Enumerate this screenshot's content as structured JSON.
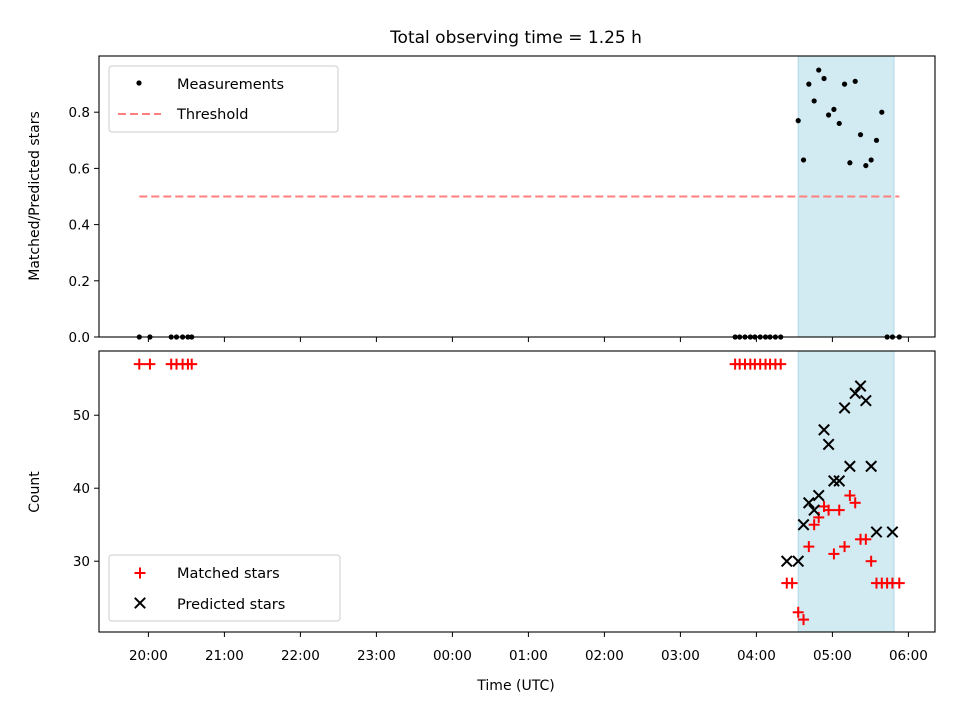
{
  "chart_data": [
    {
      "type": "scatter",
      "title": "Total observing time = 1.25 h",
      "xlabel": "",
      "ylabel": "Matched/Predicted stars",
      "xlim": [
        -0.65,
        10.35
      ],
      "ylim": [
        0,
        1.0
      ],
      "yticks": [
        0.0,
        0.2,
        0.4,
        0.6,
        0.8
      ],
      "ytick_labels": [
        "0.0",
        "0.2",
        "0.4",
        "0.6",
        "0.8"
      ],
      "grid": false,
      "legend_position": "upper left",
      "shaded_region": {
        "from": 8.55,
        "to": 9.81,
        "color": "#add8e6"
      },
      "series": [
        {
          "name": "Measurements",
          "marker": "dot",
          "color": "#000000",
          "x": [
            -0.12,
            0.02,
            0.3,
            0.37,
            0.45,
            0.52,
            0.57,
            7.72,
            7.78,
            7.85,
            7.92,
            7.98,
            8.05,
            8.12,
            8.18,
            8.25,
            8.32,
            8.55,
            8.62,
            8.69,
            8.76,
            8.82,
            8.89,
            8.95,
            9.02,
            9.09,
            9.16,
            9.23,
            9.3,
            9.37,
            9.44,
            9.51,
            9.58,
            9.65,
            9.72,
            9.79,
            9.88
          ],
          "y": [
            0,
            0,
            0,
            0,
            0,
            0,
            0,
            0,
            0,
            0,
            0,
            0,
            0,
            0,
            0,
            0,
            0,
            0.77,
            0.63,
            0.9,
            0.84,
            0.95,
            0.92,
            0.79,
            0.81,
            0.76,
            0.9,
            0.62,
            0.91,
            0.72,
            0.61,
            0.63,
            0.7,
            0.8,
            0.0,
            0.0,
            0.0
          ]
        },
        {
          "name": "Threshold",
          "style": "dashed",
          "color": "#ff7f7f",
          "x": [
            -0.12,
            9.88
          ],
          "y": [
            0.5,
            0.5
          ]
        }
      ]
    },
    {
      "type": "scatter",
      "xlabel": "Time (UTC)",
      "ylabel": "Count",
      "xlim": [
        -0.65,
        10.35
      ],
      "ylim": [
        20.3,
        58.8
      ],
      "yticks": [
        30,
        40,
        50
      ],
      "ytick_labels": [
        "30",
        "40",
        "50"
      ],
      "xticks": [
        0,
        1,
        2,
        3,
        4,
        5,
        6,
        7,
        8,
        9,
        10
      ],
      "xtick_labels": [
        "20:00",
        "21:00",
        "22:00",
        "23:00",
        "00:00",
        "01:00",
        "02:00",
        "03:00",
        "04:00",
        "05:00",
        "06:00"
      ],
      "grid": false,
      "legend_position": "lower left",
      "shaded_region": {
        "from": 8.55,
        "to": 9.81,
        "color": "#add8e6"
      },
      "series": [
        {
          "name": "Matched stars",
          "marker": "plus",
          "color": "#ff0000",
          "x": [
            -0.12,
            0.02,
            0.3,
            0.37,
            0.45,
            0.52,
            0.57,
            7.72,
            7.78,
            7.85,
            7.92,
            7.98,
            8.05,
            8.12,
            8.18,
            8.25,
            8.32,
            8.4,
            8.47,
            8.55,
            8.62,
            8.69,
            8.76,
            8.82,
            8.89,
            8.95,
            9.02,
            9.09,
            9.16,
            9.23,
            9.3,
            9.37,
            9.44,
            9.51,
            9.58,
            9.65,
            9.72,
            9.79,
            9.88
          ],
          "y": [
            57,
            57,
            57,
            57,
            57,
            57,
            57,
            57,
            57,
            57,
            57,
            57,
            57,
            57,
            57,
            57,
            57,
            27,
            27,
            23,
            22,
            32,
            35,
            36,
            37.5,
            37,
            31,
            37,
            32,
            39,
            38,
            33,
            33,
            30,
            27,
            27,
            27,
            27,
            27
          ]
        },
        {
          "name": "Predicted stars",
          "marker": "x",
          "color": "#000000",
          "x": [
            8.4,
            8.55,
            8.62,
            8.69,
            8.76,
            8.82,
            8.89,
            8.95,
            9.02,
            9.09,
            9.16,
            9.23,
            9.3,
            9.37,
            9.44,
            9.51,
            9.58,
            9.79
          ],
          "y": [
            30,
            30,
            35,
            38,
            37,
            39,
            48,
            46,
            41,
            41,
            51,
            43,
            53,
            54,
            52,
            43,
            34,
            34
          ]
        }
      ]
    }
  ]
}
